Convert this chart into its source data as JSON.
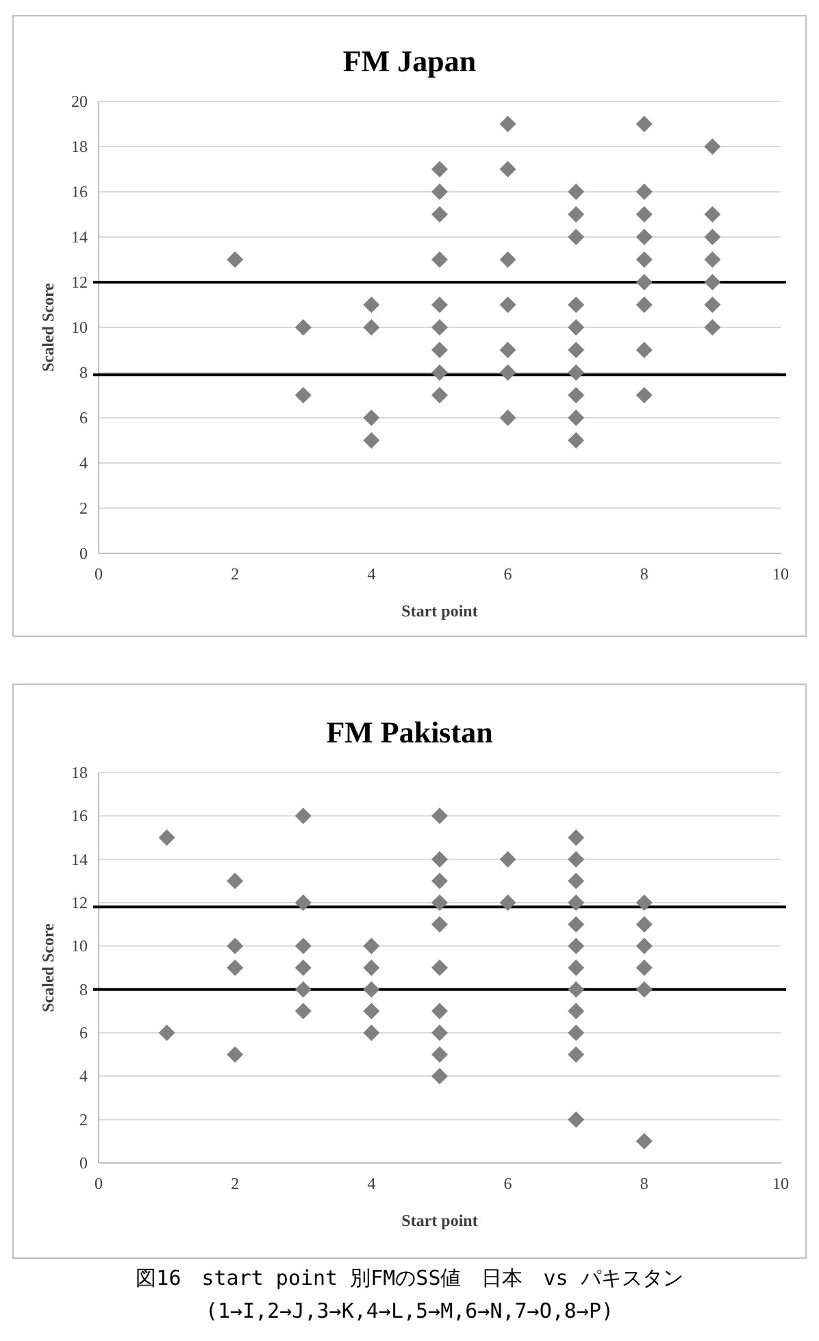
{
  "chart_data": [
    {
      "type": "scatter",
      "title": "FM  Japan",
      "xlabel": "Start point",
      "ylabel": "Scaled Score",
      "marker": "diamond",
      "grid": "y",
      "xlim": [
        0,
        10
      ],
      "xticks": [
        0,
        2,
        4,
        6,
        8,
        10
      ],
      "ylim": [
        0,
        20
      ],
      "yticks": [
        0,
        2,
        4,
        6,
        8,
        10,
        12,
        14,
        16,
        18,
        20
      ],
      "series": [
        {
          "color": "#808080",
          "x": [
            2,
            3,
            3,
            4,
            4,
            4,
            4,
            5,
            5,
            5,
            5,
            5,
            5,
            5,
            5,
            5,
            6,
            6,
            6,
            6,
            6,
            6,
            6,
            7,
            7,
            7,
            7,
            7,
            7,
            7,
            7,
            7,
            7,
            8,
            8,
            8,
            8,
            8,
            8,
            8,
            8,
            8,
            9,
            9,
            9,
            9,
            9,
            9,
            9
          ],
          "values": [
            13,
            10,
            7,
            11,
            10,
            6,
            5,
            17,
            16,
            15,
            13,
            11,
            10,
            9,
            8,
            7,
            19,
            17,
            13,
            11,
            9,
            8,
            6,
            16,
            15,
            14,
            11,
            10,
            9,
            8,
            7,
            6,
            5,
            19,
            16,
            15,
            14,
            13,
            12,
            11,
            9,
            7,
            18,
            15,
            14,
            13,
            12,
            11,
            10
          ]
        }
      ],
      "ref_lines": [
        {
          "axis": "y",
          "value": 12,
          "color": "#000000"
        },
        {
          "axis": "y",
          "value": 7.9,
          "color": "#000000"
        }
      ]
    },
    {
      "type": "scatter",
      "title": "FM  Pakistan",
      "xlabel": "Start point",
      "ylabel": "Scaled Score",
      "marker": "diamond",
      "grid": "y",
      "xlim": [
        0,
        10
      ],
      "xticks": [
        0,
        2,
        4,
        6,
        8,
        10
      ],
      "ylim": [
        0,
        18
      ],
      "yticks": [
        0,
        2,
        4,
        6,
        8,
        10,
        12,
        14,
        16,
        18
      ],
      "series": [
        {
          "color": "#808080",
          "x": [
            1,
            1,
            2,
            2,
            2,
            2,
            3,
            3,
            3,
            3,
            3,
            3,
            4,
            4,
            4,
            4,
            4,
            5,
            5,
            5,
            5,
            5,
            5,
            5,
            5,
            5,
            5,
            6,
            6,
            7,
            7,
            7,
            7,
            7,
            7,
            7,
            7,
            7,
            7,
            7,
            7,
            8,
            8,
            8,
            8,
            8,
            8
          ],
          "values": [
            15,
            6,
            13,
            10,
            9,
            5,
            16,
            12,
            10,
            9,
            8,
            7,
            10,
            9,
            8,
            7,
            6,
            16,
            14,
            13,
            12,
            11,
            9,
            7,
            6,
            5,
            4,
            14,
            12,
            15,
            14,
            13,
            12,
            11,
            10,
            9,
            8,
            7,
            6,
            5,
            2,
            12,
            11,
            10,
            9,
            8,
            1
          ]
        }
      ],
      "ref_lines": [
        {
          "axis": "y",
          "value": 11.8,
          "color": "#000000"
        },
        {
          "axis": "y",
          "value": 8,
          "color": "#000000"
        }
      ],
      "annotations": [
        "図16　start point 別FMのSS値　日本　vs パキスタン",
        "(1→I,2→J,3→K,4→L,5→M,6→N,7→O,8→P)"
      ]
    }
  ]
}
